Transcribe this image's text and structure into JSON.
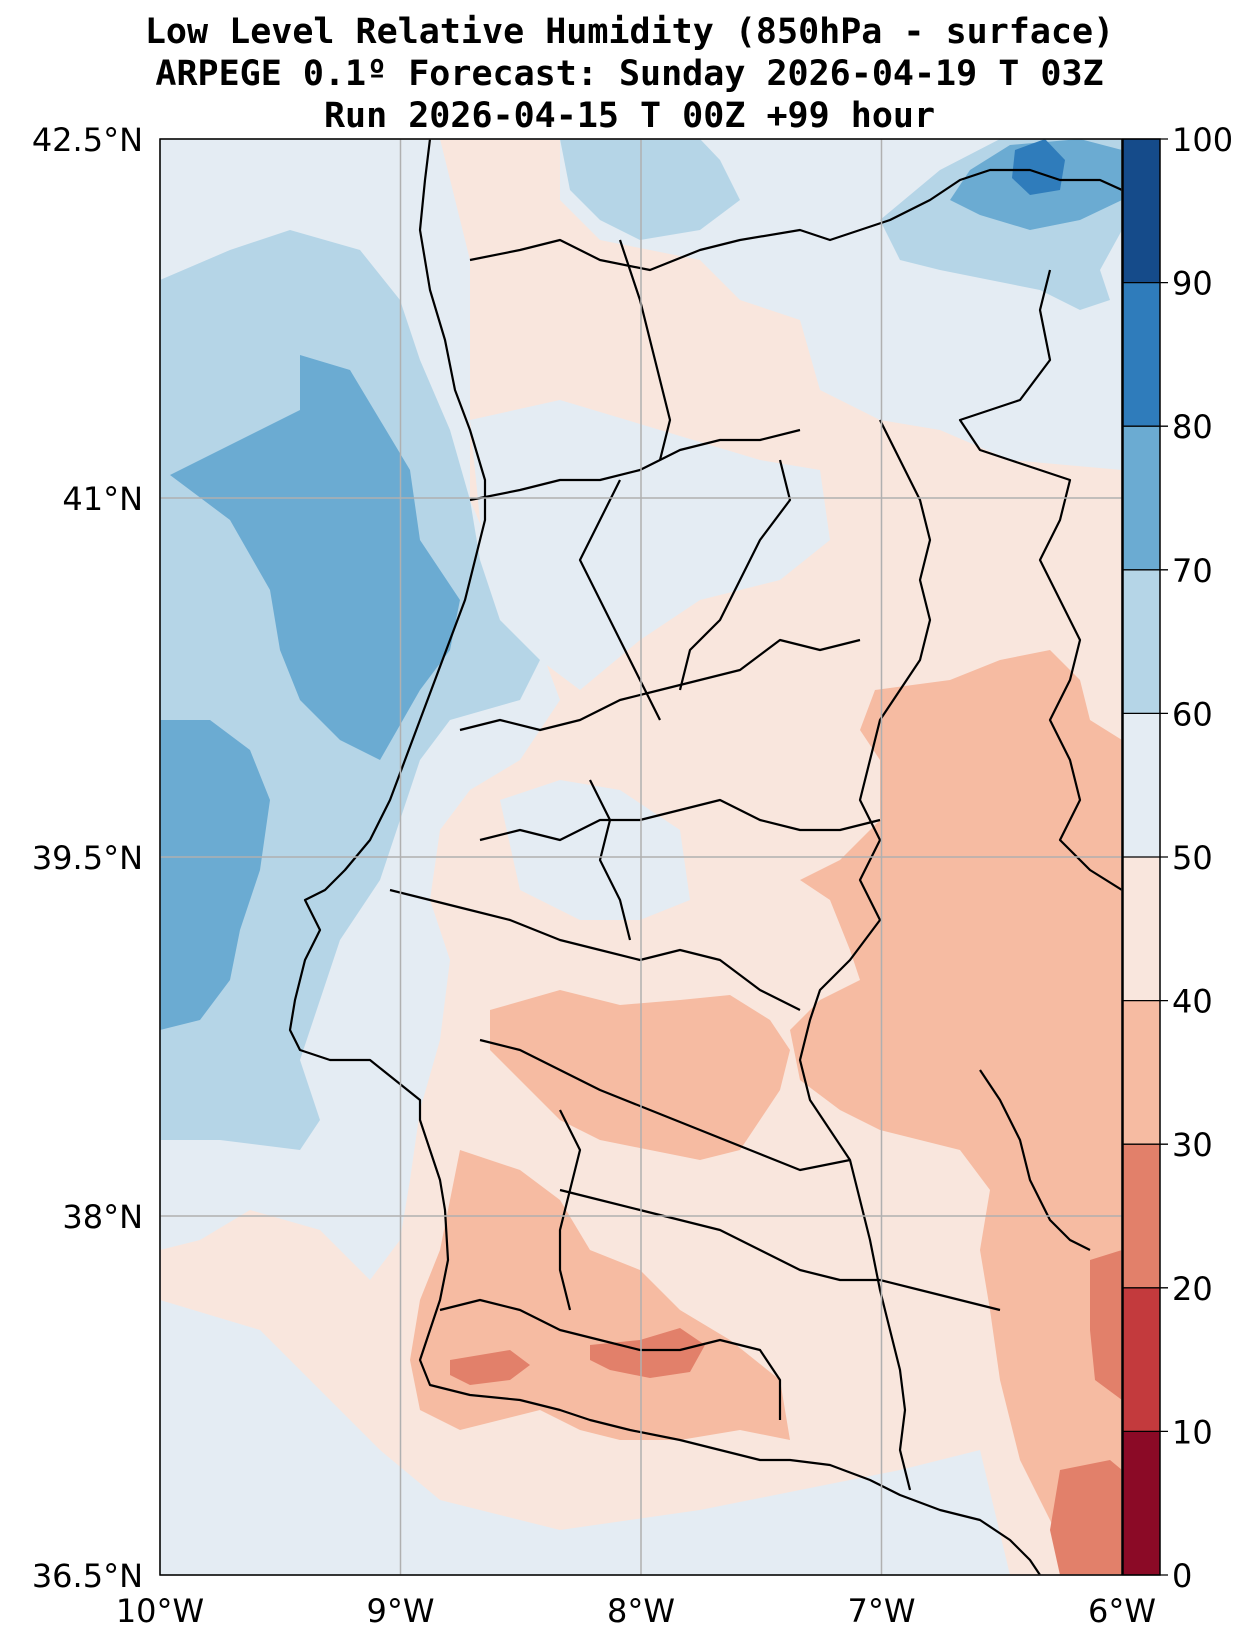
{
  "title": {
    "line1": "Low Level Relative Humidity (850hPa - surface)",
    "line2": "ARPEGE 0.1º Forecast: Sunday 2026-04-19 T 03Z",
    "line3": "Run 2026-04-15 T 00Z +99 hour"
  },
  "map": {
    "lon_range": [
      -10,
      -6
    ],
    "lat_range": [
      36.5,
      42.5
    ],
    "lon_ticks": [
      {
        "value": -10,
        "label": "10°W"
      },
      {
        "value": -9,
        "label": "9°W"
      },
      {
        "value": -8,
        "label": "8°W"
      },
      {
        "value": -7,
        "label": "7°W"
      },
      {
        "value": -6,
        "label": "6°W"
      }
    ],
    "lat_ticks": [
      {
        "value": 42.5,
        "label": "42.5°N"
      },
      {
        "value": 41,
        "label": "41°N"
      },
      {
        "value": 39.5,
        "label": "39.5°N"
      },
      {
        "value": 38,
        "label": "38°N"
      },
      {
        "value": 36.5,
        "label": "36.5°N"
      }
    ]
  },
  "colorbar": {
    "min": 0,
    "max": 100,
    "ticks": [
      0,
      10,
      20,
      30,
      40,
      50,
      60,
      70,
      80,
      90,
      100
    ],
    "tick_labels": [
      "0",
      "10",
      "20",
      "30",
      "40",
      "50",
      "60",
      "70",
      "80",
      "90",
      "100"
    ],
    "colors": [
      "#8b0a26",
      "#c33a3d",
      "#e2806a",
      "#f6bba2",
      "#f9e6dd",
      "#e4ecf3",
      "#b5d5e7",
      "#6babd2",
      "#2f7cbb",
      "#154b8a"
    ]
  }
}
